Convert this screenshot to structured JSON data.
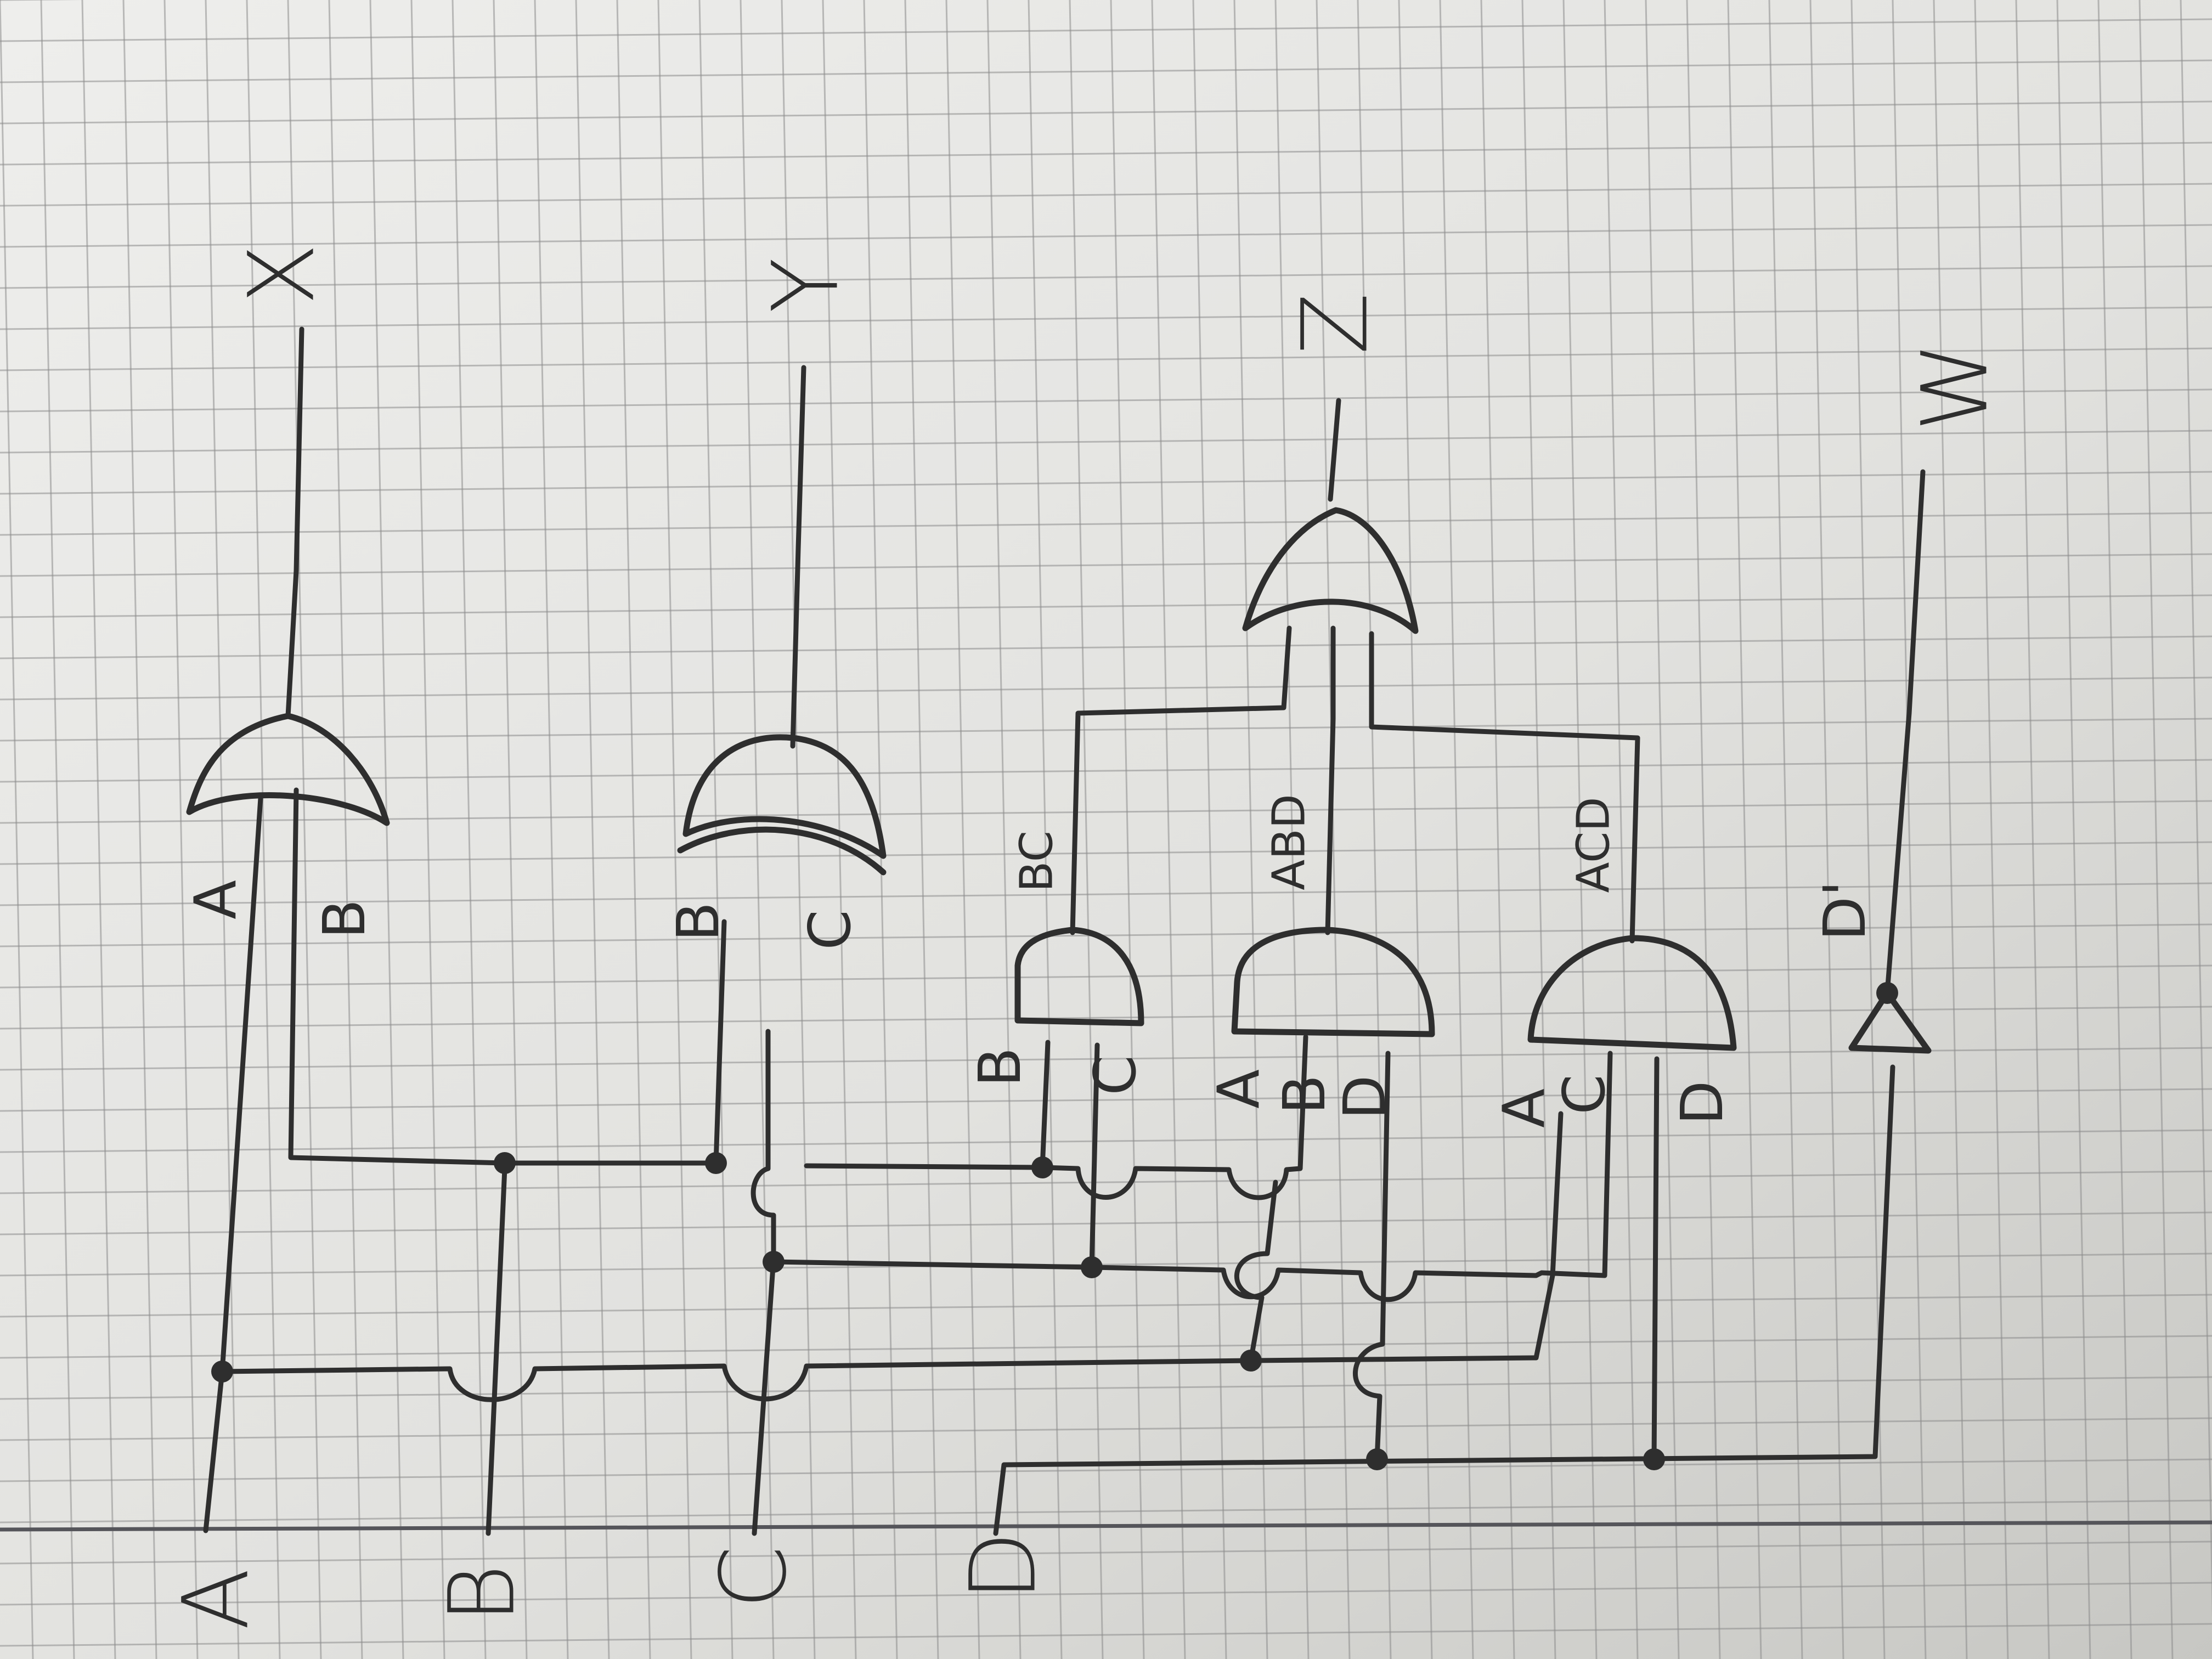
{
  "inputs": {
    "a": "A",
    "b": "B",
    "c": "C",
    "d": "D"
  },
  "outputs": {
    "x": "X",
    "y": "Y",
    "z": "Z",
    "w": "W"
  },
  "gate_x": {
    "in1": "A",
    "in2": "B"
  },
  "gate_y": {
    "in1": "B",
    "in2": "C"
  },
  "gate_bc": {
    "in1": "B",
    "in2": "C",
    "output": "BC"
  },
  "gate_abd": {
    "in1": "A",
    "in2": "B",
    "in3": "D",
    "output": "ABD"
  },
  "gate_acd": {
    "in1": "A",
    "in2": "C",
    "in3": "D",
    "output": "ACD"
  },
  "inverter": {
    "output": "D'"
  }
}
